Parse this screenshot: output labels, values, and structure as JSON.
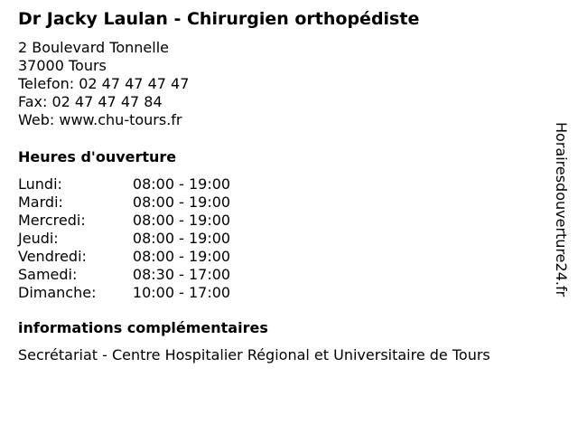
{
  "title": "Dr Jacky Laulan - Chirurgien orthopédiste",
  "address": {
    "street": "2 Boulevard Tonnelle",
    "city": "37000 Tours",
    "phone": "Telefon: 02 47 47 47 47",
    "fax": "Fax: 02 47 47 47 84",
    "web": "Web: www.chu-tours.fr"
  },
  "hours_heading": "Heures d'ouverture",
  "hours": [
    {
      "day": "Lundi:",
      "time": "08:00 - 19:00"
    },
    {
      "day": "Mardi:",
      "time": "08:00 - 19:00"
    },
    {
      "day": "Mercredi:",
      "time": "08:00 - 19:00"
    },
    {
      "day": "Jeudi:",
      "time": "08:00 - 19:00"
    },
    {
      "day": "Vendredi:",
      "time": "08:00 - 19:00"
    },
    {
      "day": "Samedi:",
      "time": "08:30 - 17:00"
    },
    {
      "day": "Dimanche:",
      "time": "10:00 - 17:00"
    }
  ],
  "info_heading": "informations complémentaires",
  "info_text": "Secrétariat - Centre Hospitalier Régional et Universitaire de Tours",
  "watermark": "Horairesdouverture24.fr"
}
